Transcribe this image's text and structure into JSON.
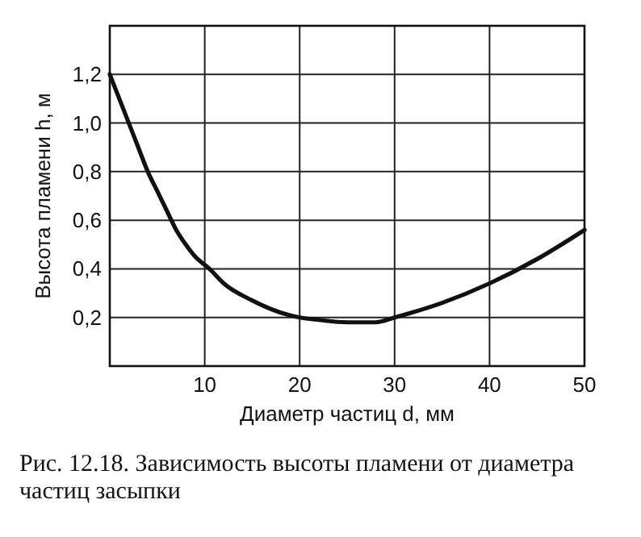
{
  "chart_data": {
    "type": "line",
    "xlabel": "Диаметр частиц d, мм",
    "ylabel": "Высота пламени h, м",
    "annotations": [
      "Рис. 12.18. Зависимость высоты пламени от диаметра частиц засыпки"
    ],
    "x": [
      0,
      1,
      2,
      3,
      4,
      5,
      6,
      7,
      8,
      9,
      10.5,
      12,
      15,
      18,
      20,
      22,
      25,
      28,
      30,
      35,
      40,
      45,
      50
    ],
    "series": [
      {
        "color": "#111111",
        "values": [
          1.2,
          1.1,
          1.0,
          0.9,
          0.8,
          0.72,
          0.64,
          0.56,
          0.5,
          0.45,
          0.4,
          0.34,
          0.27,
          0.22,
          0.2,
          0.19,
          0.18,
          0.18,
          0.2,
          0.26,
          0.34,
          0.44,
          0.56
        ]
      }
    ],
    "xlim": [
      0,
      50
    ],
    "ylim": [
      0,
      1.4
    ],
    "xticks": [
      {
        "value": 0,
        "label": null
      },
      10,
      20,
      30,
      40,
      50
    ],
    "yticks": [
      {
        "value": 0,
        "label": null
      },
      {
        "value": 0.2,
        "label": "0,2"
      },
      {
        "value": 0.4,
        "label": "0,4"
      },
      {
        "value": 0.6,
        "label": "0,6"
      },
      {
        "value": 0.8,
        "label": "0,8"
      },
      {
        "value": 1.0,
        "label": "1,0"
      },
      {
        "value": 1.2,
        "label": "1,2"
      },
      {
        "value": 1.4,
        "label": null
      }
    ],
    "grid": true,
    "line_style": "solid"
  }
}
